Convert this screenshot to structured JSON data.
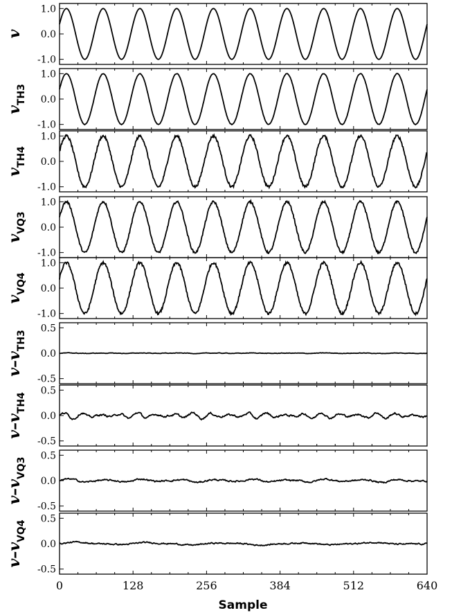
{
  "chart_data": [
    {
      "type": "line",
      "ylabel_main": "v",
      "ylabel_sub": "",
      "ylim": [
        -1.2,
        1.2
      ],
      "yticks": [
        1.0,
        0.0,
        -1.0
      ],
      "ytick_labels": [
        "1.0",
        "0.0",
        "-1.0"
      ],
      "series": [
        {
          "kind": "sine",
          "amplitude": 1.0,
          "period": 64,
          "phase_offset": 4,
          "noise": 0.0
        }
      ]
    },
    {
      "type": "line",
      "ylabel_main": "v",
      "ylabel_sub": "TH3",
      "ylim": [
        -1.2,
        1.2
      ],
      "yticks": [
        1.0,
        0.0,
        -1.0
      ],
      "ytick_labels": [
        "1.0",
        "0.0",
        "-1.0"
      ],
      "series": [
        {
          "kind": "sine",
          "amplitude": 1.0,
          "period": 64,
          "phase_offset": 4,
          "noise": 0.01
        }
      ]
    },
    {
      "type": "line",
      "ylabel_main": "v",
      "ylabel_sub": "TH4",
      "ylim": [
        -1.2,
        1.2
      ],
      "yticks": [
        1.0,
        0.0,
        -1.0
      ],
      "ytick_labels": [
        "1.0",
        "0.0",
        "-1.0"
      ],
      "series": [
        {
          "kind": "sine",
          "amplitude": 1.0,
          "period": 64,
          "phase_offset": 4,
          "noise": 0.05
        }
      ]
    },
    {
      "type": "line",
      "ylabel_main": "v",
      "ylabel_sub": "VQ3",
      "ylim": [
        -1.2,
        1.2
      ],
      "yticks": [
        1.0,
        0.0,
        -1.0
      ],
      "ytick_labels": [
        "1.0",
        "0.0",
        "-1.0"
      ],
      "series": [
        {
          "kind": "sine",
          "amplitude": 1.0,
          "period": 64,
          "phase_offset": 4,
          "noise": 0.04
        }
      ]
    },
    {
      "type": "line",
      "ylabel_main": "v",
      "ylabel_sub": "VQ4",
      "ylim": [
        -1.2,
        1.2
      ],
      "yticks": [
        1.0,
        0.0,
        -1.0
      ],
      "ytick_labels": [
        "1.0",
        "0.0",
        "-1.0"
      ],
      "series": [
        {
          "kind": "sine",
          "amplitude": 1.0,
          "period": 64,
          "phase_offset": 4,
          "noise": 0.05
        }
      ]
    },
    {
      "type": "line",
      "ylabel_main": "v–v",
      "ylabel_sub": "TH3",
      "ylim": [
        -0.6,
        0.6
      ],
      "yticks": [
        0.5,
        0.0,
        -0.5
      ],
      "ytick_labels": [
        "0.5",
        "0.0",
        "-0.5"
      ],
      "series": [
        {
          "kind": "residual",
          "amplitude": 0.005,
          "period": 64,
          "noise": 0.004
        }
      ]
    },
    {
      "type": "line",
      "ylabel_main": "v–v",
      "ylabel_sub": "TH4",
      "ylim": [
        -0.6,
        0.6
      ],
      "yticks": [
        0.5,
        0.0,
        -0.5
      ],
      "ytick_labels": [
        "0.5",
        "0.0",
        "-0.5"
      ],
      "series": [
        {
          "kind": "residual",
          "amplitude": 0.06,
          "period": 32,
          "noise": 0.015
        }
      ]
    },
    {
      "type": "line",
      "ylabel_main": "v–v",
      "ylabel_sub": "VQ3",
      "ylim": [
        -0.6,
        0.6
      ],
      "yticks": [
        0.5,
        0.0,
        -0.5
      ],
      "ytick_labels": [
        "0.5",
        "0.0",
        "-0.5"
      ],
      "series": [
        {
          "kind": "residual",
          "amplitude": 0.035,
          "period": 64,
          "noise": 0.012
        }
      ]
    },
    {
      "type": "line",
      "ylabel_main": "v–v",
      "ylabel_sub": "VQ4",
      "ylim": [
        -0.6,
        0.6
      ],
      "yticks": [
        0.5,
        0.0,
        -0.5
      ],
      "ytick_labels": [
        "0.5",
        "0.0",
        "-0.5"
      ],
      "series": [
        {
          "kind": "residual",
          "amplitude": 0.03,
          "period": 128,
          "noise": 0.01
        }
      ]
    }
  ],
  "x_axis": {
    "label": "Sample",
    "xlim": [
      0,
      640
    ],
    "ticks": [
      0,
      128,
      256,
      384,
      512,
      640
    ],
    "tick_labels": [
      "0",
      "128",
      "256",
      "384",
      "512",
      "640"
    ]
  }
}
